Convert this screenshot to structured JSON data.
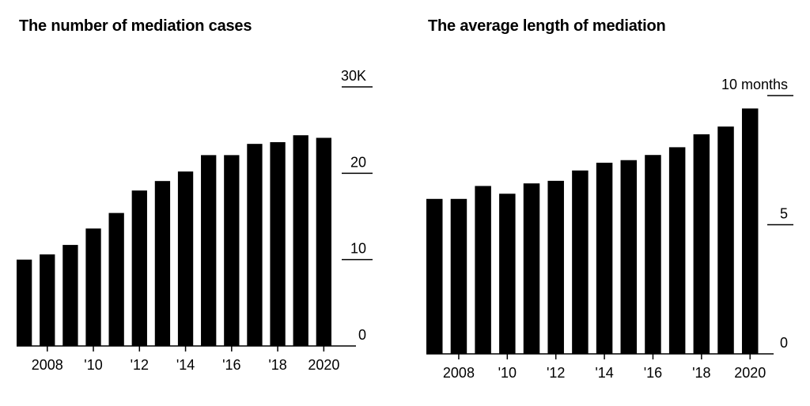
{
  "chart_data": [
    {
      "type": "bar",
      "title": "The number of mediation cases",
      "unit": "K",
      "categories": [
        "2007",
        "2008",
        "2009",
        "2010",
        "2011",
        "2012",
        "2013",
        "2014",
        "2015",
        "2016",
        "2017",
        "2018",
        "2019",
        "2020"
      ],
      "x_tick_labels": [
        "2008",
        "'10",
        "'12",
        "'14",
        "'16",
        "'18",
        "2020"
      ],
      "x_tick_years": [
        "2008",
        "2010",
        "2012",
        "2014",
        "2016",
        "2018",
        "2020"
      ],
      "values": [
        10.0,
        10.6,
        11.7,
        13.6,
        15.4,
        18.0,
        19.1,
        20.2,
        22.1,
        22.1,
        23.4,
        23.6,
        24.4,
        24.1
      ],
      "y_tick_labels": [
        "0",
        "10",
        "20",
        "30K"
      ],
      "y_tick_values": [
        0,
        10,
        20,
        30
      ],
      "ylim": [
        0,
        30
      ],
      "bar_color": "#000000",
      "grid": false
    },
    {
      "type": "bar",
      "title": "The average length of mediation",
      "unit": "months",
      "categories": [
        "2007",
        "2008",
        "2009",
        "2010",
        "2011",
        "2012",
        "2013",
        "2014",
        "2015",
        "2016",
        "2017",
        "2018",
        "2019",
        "2020"
      ],
      "x_tick_labels": [
        "2008",
        "'10",
        "'12",
        "'14",
        "'16",
        "'18",
        "2020"
      ],
      "x_tick_years": [
        "2008",
        "2010",
        "2012",
        "2014",
        "2016",
        "2018",
        "2020"
      ],
      "values": [
        6.0,
        6.0,
        6.5,
        6.2,
        6.6,
        6.7,
        7.1,
        7.4,
        7.5,
        7.7,
        8.0,
        8.5,
        8.8,
        9.5
      ],
      "y_tick_labels": [
        "0",
        "5",
        "10 months"
      ],
      "y_tick_values": [
        0,
        5,
        10
      ],
      "ylim": [
        0,
        10
      ],
      "bar_color": "#000000",
      "grid": false
    }
  ]
}
